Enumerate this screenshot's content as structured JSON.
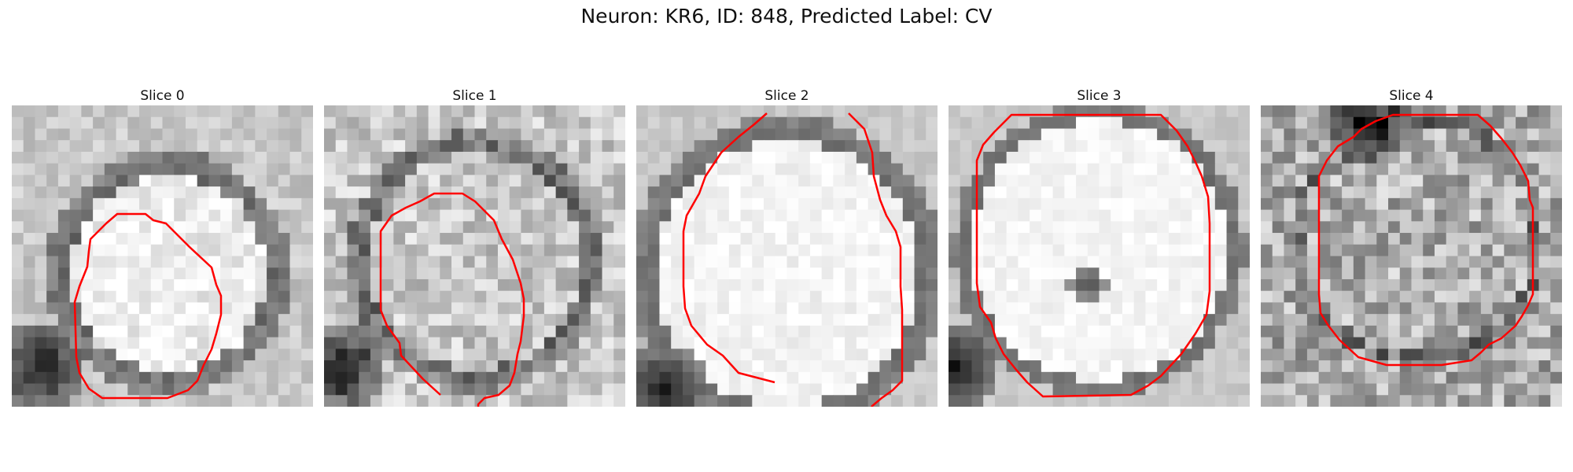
{
  "figure": {
    "title": "Neuron: KR6, ID: 848, Predicted Label: CV",
    "contour_color": "#ff0000"
  },
  "slices": [
    {
      "title": "Slice 0"
    },
    {
      "title": "Slice 1"
    },
    {
      "title": "Slice 2"
    },
    {
      "title": "Slice 3"
    },
    {
      "title": "Slice 4"
    }
  ]
}
